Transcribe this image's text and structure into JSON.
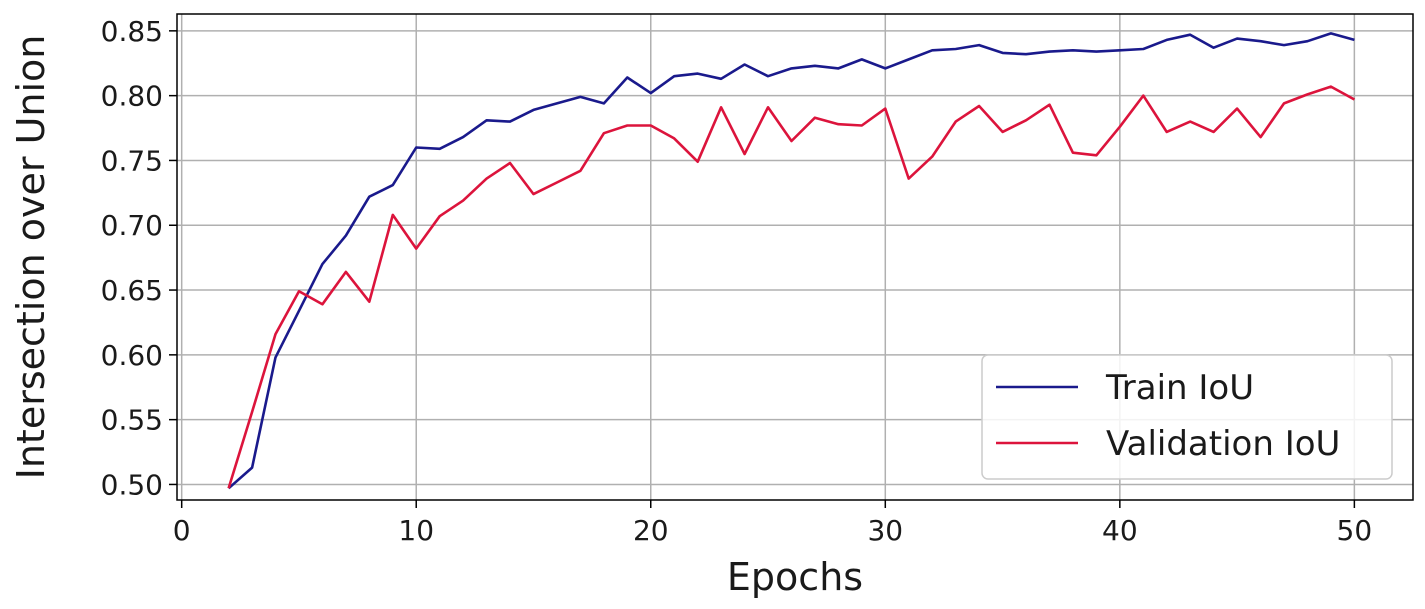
{
  "chart_data": {
    "type": "line",
    "xlabel": "Epochs",
    "ylabel": "Intersection over Union",
    "xlim": [
      -0.2,
      52.5
    ],
    "ylim": [
      0.488,
      0.863
    ],
    "xticks": [
      0,
      10,
      20,
      30,
      40,
      50
    ],
    "yticks": [
      0.5,
      0.55,
      0.6,
      0.65,
      0.7,
      0.75,
      0.8,
      0.85
    ],
    "grid": true,
    "legend_position": "bottom-right",
    "x": [
      2,
      3,
      4,
      5,
      6,
      7,
      8,
      9,
      10,
      11,
      12,
      13,
      14,
      15,
      16,
      17,
      18,
      19,
      20,
      21,
      22,
      23,
      24,
      25,
      26,
      27,
      28,
      29,
      30,
      31,
      32,
      33,
      34,
      35,
      36,
      37,
      38,
      39,
      40,
      41,
      42,
      43,
      44,
      45,
      46,
      47,
      48,
      49,
      50
    ],
    "series": [
      {
        "name": "Train IoU",
        "color": "#1a1a8c",
        "values": [
          0.497,
          0.513,
          0.598,
          0.634,
          0.67,
          0.692,
          0.722,
          0.731,
          0.76,
          0.759,
          0.768,
          0.781,
          0.78,
          0.789,
          0.794,
          0.799,
          0.794,
          0.814,
          0.802,
          0.815,
          0.817,
          0.813,
          0.824,
          0.815,
          0.821,
          0.823,
          0.821,
          0.828,
          0.821,
          0.828,
          0.835,
          0.836,
          0.839,
          0.833,
          0.832,
          0.834,
          0.835,
          0.834,
          0.835,
          0.836,
          0.843,
          0.847,
          0.837,
          0.844,
          0.842,
          0.839,
          0.842,
          0.848,
          0.843
        ]
      },
      {
        "name": "Validation IoU",
        "color": "#dc143c",
        "values": [
          0.497,
          0.556,
          0.616,
          0.649,
          0.639,
          0.664,
          0.641,
          0.708,
          0.682,
          0.707,
          0.719,
          0.736,
          0.748,
          0.724,
          0.733,
          0.742,
          0.771,
          0.777,
          0.777,
          0.767,
          0.749,
          0.791,
          0.755,
          0.791,
          0.765,
          0.783,
          0.778,
          0.777,
          0.79,
          0.736,
          0.753,
          0.78,
          0.792,
          0.772,
          0.781,
          0.793,
          0.756,
          0.754,
          0.776,
          0.8,
          0.772,
          0.78,
          0.772,
          0.79,
          0.768,
          0.794,
          0.801,
          0.807,
          0.797
        ]
      }
    ]
  }
}
